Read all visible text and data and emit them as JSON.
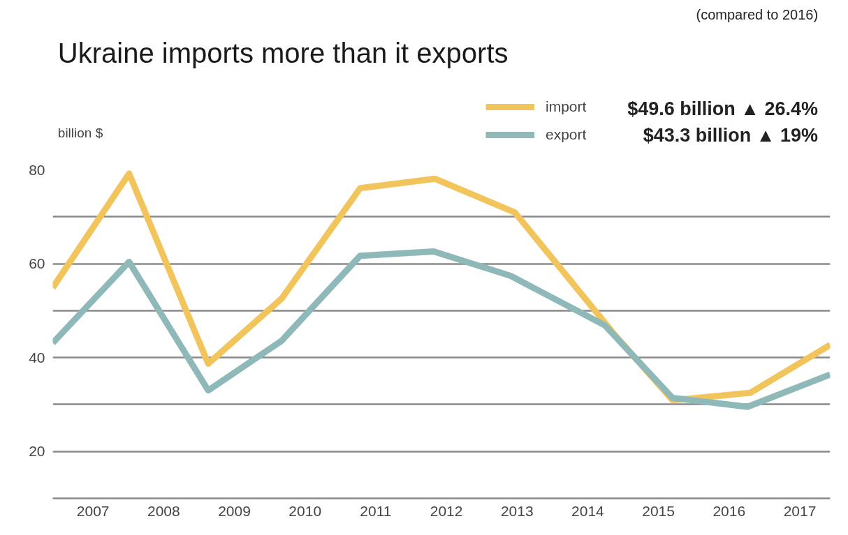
{
  "chart_data": {
    "type": "line",
    "title": "Ukraine imports more than it exports",
    "ylabel": "billion $",
    "xlim": [
      2006.43,
      2017.43
    ],
    "ylim": [
      10,
      80
    ],
    "xticks": [
      2007,
      2008,
      2009,
      2010,
      2011,
      2012,
      2013,
      2014,
      2015,
      2016,
      2017
    ],
    "yticks": [
      20,
      {
        "value": 30,
        "label": null
      },
      40,
      {
        "value": 50,
        "label": null
      },
      60,
      {
        "value": 70,
        "label": null
      },
      80
    ],
    "grid": "y",
    "legend": "top right",
    "marker": "none",
    "line_style": "solid",
    "series": [
      {
        "name": "import",
        "color": "#f2c55c",
        "x": [
          2006.43,
          2007.51,
          2008.63,
          2009.67,
          2010.78,
          2011.84,
          2012.97,
          2014.39,
          2015.2,
          2016.3,
          2017.43
        ],
        "values": [
          54.9,
          79.2,
          38.7,
          52.6,
          76.1,
          78.1,
          70.9,
          44.7,
          30.9,
          32.5,
          42.7
        ]
      },
      {
        "name": "export",
        "color": "#8fb8b8",
        "x": [
          2006.43,
          2007.51,
          2008.63,
          2009.67,
          2010.78,
          2011.82,
          2012.91,
          2014.24,
          2015.2,
          2016.26,
          2017.43
        ],
        "values": [
          43.1,
          60.4,
          33.0,
          43.6,
          61.7,
          62.6,
          57.4,
          46.9,
          31.4,
          29.5,
          36.4
        ]
      }
    ],
    "annotations": [
      "(compared to 2016)",
      "$49.6 billion ▲ 26.4%",
      "$43.3 billion ▲ 19%"
    ]
  }
}
